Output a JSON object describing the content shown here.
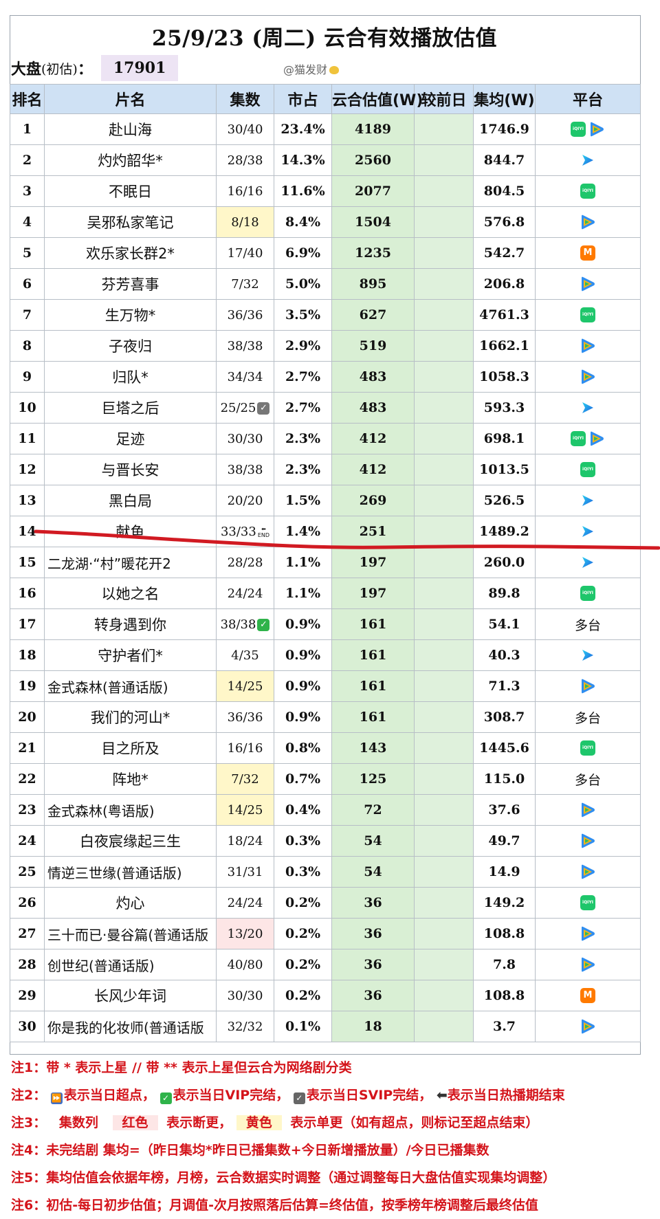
{
  "title": "25/9/23 (周二) 云合有效播放估值",
  "market": {
    "label": "大盘",
    "sub": "(初估)",
    "colon": "：",
    "value": "17901"
  },
  "handle": "@猫发财",
  "headers": [
    "排名",
    "片名",
    "集数",
    "市占",
    "云合估值(W)",
    "较前日",
    "集均(W)",
    "平台"
  ],
  "rows": [
    {
      "rank": "1",
      "name": "赴山海",
      "eps": "30/40",
      "share": "23.4%",
      "est": "4189",
      "avg": "1746.9",
      "platform": [
        "iqiyi",
        "tencent"
      ]
    },
    {
      "rank": "2",
      "name": "灼灼韶华*",
      "eps": "28/38",
      "share": "14.3%",
      "est": "2560",
      "avg": "844.7",
      "platform": [
        "youku"
      ]
    },
    {
      "rank": "3",
      "name": "不眠日",
      "eps": "16/16",
      "share": "11.6%",
      "est": "2077",
      "avg": "804.5",
      "platform": [
        "iqiyi"
      ]
    },
    {
      "rank": "4",
      "name": "吴邪私家笔记",
      "eps": "8/18",
      "eps_hl": "yellow",
      "share": "8.4%",
      "est": "1504",
      "avg": "576.8",
      "platform": [
        "tencent"
      ]
    },
    {
      "rank": "5",
      "name": "欢乐家长群2*",
      "eps": "17/40",
      "share": "6.9%",
      "est": "1235",
      "avg": "542.7",
      "platform": [
        "mango"
      ]
    },
    {
      "rank": "6",
      "name": "芬芳喜事",
      "eps": "7/32",
      "share": "5.0%",
      "est": "895",
      "avg": "206.8",
      "platform": [
        "tencent"
      ]
    },
    {
      "rank": "7",
      "name": "生万物*",
      "eps": "36/36",
      "share": "3.5%",
      "est": "627",
      "avg": "4761.3",
      "platform": [
        "iqiyi"
      ]
    },
    {
      "rank": "8",
      "name": "子夜归",
      "eps": "38/38",
      "share": "2.9%",
      "est": "519",
      "avg": "1662.1",
      "platform": [
        "tencent"
      ]
    },
    {
      "rank": "9",
      "name": "归队*",
      "eps": "34/34",
      "share": "2.7%",
      "est": "483",
      "avg": "1058.3",
      "platform": [
        "tencent"
      ]
    },
    {
      "rank": "10",
      "name": "巨塔之后",
      "eps": "25/25",
      "badge": "svip",
      "share": "2.7%",
      "est": "483",
      "avg": "593.3",
      "platform": [
        "youku"
      ]
    },
    {
      "rank": "11",
      "name": "足迹",
      "eps": "30/30",
      "share": "2.3%",
      "est": "412",
      "avg": "698.1",
      "platform": [
        "iqiyi",
        "tencent"
      ]
    },
    {
      "rank": "12",
      "name": "与晋长安",
      "eps": "38/38",
      "share": "2.3%",
      "est": "412",
      "avg": "1013.5",
      "platform": [
        "iqiyi"
      ]
    },
    {
      "rank": "13",
      "name": "黑白局",
      "eps": "20/20",
      "share": "1.5%",
      "est": "269",
      "avg": "526.5",
      "platform": [
        "youku"
      ]
    },
    {
      "rank": "14",
      "name": "献鱼",
      "eps": "33/33",
      "badge": "end",
      "share": "1.4%",
      "est": "251",
      "avg": "1489.2",
      "platform": [
        "youku"
      ]
    },
    {
      "rank": "15",
      "name": "二龙湖·“村”暖花开2",
      "eps": "28/28",
      "share": "1.1%",
      "est": "197",
      "avg": "260.0",
      "platform": [
        "youku"
      ]
    },
    {
      "rank": "16",
      "name": "以她之名",
      "eps": "24/24",
      "share": "1.1%",
      "est": "197",
      "avg": "89.8",
      "platform": [
        "iqiyi"
      ]
    },
    {
      "rank": "17",
      "name": "转身遇到你",
      "eps": "38/38",
      "badge": "vip",
      "share": "0.9%",
      "est": "161",
      "avg": "54.1",
      "platform_text": "多台"
    },
    {
      "rank": "18",
      "name": "守护者们*",
      "eps": "4/35",
      "share": "0.9%",
      "est": "161",
      "avg": "40.3",
      "platform": [
        "youku"
      ]
    },
    {
      "rank": "19",
      "name": "金式森林(普通话版)",
      "eps": "14/25",
      "eps_hl": "yellow",
      "share": "0.9%",
      "est": "161",
      "avg": "71.3",
      "platform": [
        "tencent"
      ]
    },
    {
      "rank": "20",
      "name": "我们的河山*",
      "eps": "36/36",
      "share": "0.9%",
      "est": "161",
      "avg": "308.7",
      "platform_text": "多台"
    },
    {
      "rank": "21",
      "name": "目之所及",
      "eps": "16/16",
      "share": "0.8%",
      "est": "143",
      "avg": "1445.6",
      "platform": [
        "iqiyi"
      ]
    },
    {
      "rank": "22",
      "name": "阵地*",
      "eps": "7/32",
      "eps_hl": "yellow",
      "share": "0.7%",
      "est": "125",
      "avg": "115.0",
      "platform_text": "多台"
    },
    {
      "rank": "23",
      "name": "金式森林(粤语版)",
      "eps": "14/25",
      "eps_hl": "yellow",
      "share": "0.4%",
      "est": "72",
      "avg": "37.6",
      "platform": [
        "tencent"
      ]
    },
    {
      "rank": "24",
      "name": "白夜宸缘起三生",
      "eps": "18/24",
      "share": "0.3%",
      "est": "54",
      "avg": "49.7",
      "platform": [
        "tencent"
      ]
    },
    {
      "rank": "25",
      "name": "情逆三世缘(普通话版)",
      "eps": "31/31",
      "share": "0.3%",
      "est": "54",
      "avg": "14.9",
      "platform": [
        "tencent"
      ]
    },
    {
      "rank": "26",
      "name": "灼心",
      "eps": "24/24",
      "share": "0.2%",
      "est": "36",
      "avg": "149.2",
      "platform": [
        "iqiyi"
      ]
    },
    {
      "rank": "27",
      "name": "三十而已·曼谷篇(普通话版",
      "eps": "13/20",
      "eps_hl": "red",
      "share": "0.2%",
      "est": "36",
      "avg": "108.8",
      "platform": [
        "tencent"
      ]
    },
    {
      "rank": "28",
      "name": "创世纪(普通话版)",
      "eps": "40/80",
      "share": "0.2%",
      "est": "36",
      "avg": "7.8",
      "platform": [
        "tencent"
      ]
    },
    {
      "rank": "29",
      "name": "长风少年词",
      "eps": "30/30",
      "share": "0.2%",
      "est": "36",
      "avg": "108.8",
      "platform": [
        "mango"
      ]
    },
    {
      "rank": "30",
      "name": "你是我的化妆师(普通话版",
      "eps": "32/32",
      "share": "0.1%",
      "est": "18",
      "avg": "3.7",
      "platform": [
        "tencent"
      ]
    }
  ],
  "notes": {
    "n1": "注1：带 * 表示上星 // 带 ** 表示上星但云合为网络剧分类",
    "n2": {
      "tag": "注2：",
      "a": "表示当日超点，",
      "b": "表示当日VIP完结，",
      "c": "表示当日SVIP完结，",
      "d": "表示当日热播期结束"
    },
    "n3": {
      "tag": "注3：",
      "a": "集数列",
      "red": "红色",
      "b": "表示断更，",
      "yellow": "黄色",
      "c": "表示单更（如有超点，则标记至超点结束）"
    },
    "n4": "注4：未完结剧 集均=（昨日集均*昨日已播集数+今日新增播放量）/今日已播集数",
    "n5": "注5：集均估值会依据年榜，月榜，云合数据实时调整（通过调整每日大盘估值实现集均调整）",
    "n6": "注6：初估-每日初步估值；月调值-次月按照落后估算=终估值，按季榜年榜调整后最终估值"
  },
  "colors": {
    "header_bg": "#cfe1f4",
    "est_bg": "#d9efd4",
    "note_red": "#d4141b",
    "market_bg": "#ede4f4",
    "eps_yellow": "#fff7c9",
    "eps_red": "#fde6e6"
  }
}
